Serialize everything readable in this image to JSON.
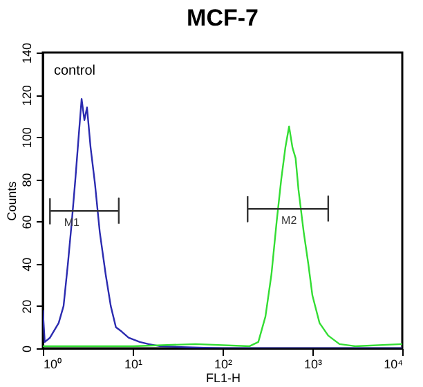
{
  "chart_data": {
    "type": "line",
    "title": "MCF-7",
    "xlabel": "FL1-H",
    "ylabel": "Counts",
    "log": "x",
    "grid": false,
    "legend": false,
    "xlim": [
      1,
      10000
    ],
    "xticks": [
      {
        "value": 1,
        "label": "10⁰"
      },
      {
        "value": 10,
        "label": "10¹"
      },
      {
        "value": 100,
        "label": "10²"
      },
      {
        "value": 1000,
        "label": "10³"
      },
      {
        "value": 10000,
        "label": "10⁴"
      }
    ],
    "ylim": [
      0,
      140
    ],
    "yticks": [
      0,
      20,
      40,
      60,
      80,
      100,
      120,
      140
    ],
    "series": [
      {
        "color": "#2b2bb0",
        "x": [
          1,
          1.05,
          1.2,
          1.5,
          1.7,
          1.9,
          2.1,
          2.3,
          2.5,
          2.7,
          2.9,
          3.1,
          3.4,
          3.8,
          4.3,
          5,
          5.7,
          6.5,
          7.5,
          9,
          12,
          15,
          20,
          40,
          100,
          1000,
          10000
        ],
        "values": [
          18,
          3,
          5,
          12,
          20,
          40,
          60,
          80,
          100,
          118,
          108,
          114,
          95,
          78,
          55,
          35,
          20,
          10,
          8,
          5,
          3,
          2,
          1,
          0.5,
          0,
          0,
          0
        ]
      },
      {
        "color": "#33dd33",
        "x": [
          1,
          10,
          50,
          200,
          250,
          300,
          350,
          400,
          450,
          500,
          550,
          600,
          650,
          700,
          800,
          900,
          1000,
          1200,
          1500,
          2000,
          3000,
          10000
        ],
        "values": [
          1,
          1,
          2,
          1,
          3,
          15,
          35,
          60,
          80,
          95,
          105,
          95,
          90,
          75,
          55,
          40,
          25,
          12,
          6,
          2,
          1,
          2
        ]
      },
      {
        "type": "line",
        "color": "#333333",
        "x": [
          1.2,
          1.2,
          1.2,
          7,
          7,
          7
        ],
        "values": [
          71,
          59,
          65,
          65,
          71,
          59
        ]
      },
      {
        "type": "line",
        "color": "#333333",
        "x": [
          190,
          190,
          190,
          1500,
          1500,
          1500
        ],
        "values": [
          72,
          60,
          66,
          66,
          72,
          60
        ]
      }
    ],
    "annotations": [
      "control",
      {
        "text": "M1",
        "x": 2.1,
        "y": 65
      },
      {
        "text": "M2",
        "x": 550,
        "y": 66
      }
    ]
  }
}
